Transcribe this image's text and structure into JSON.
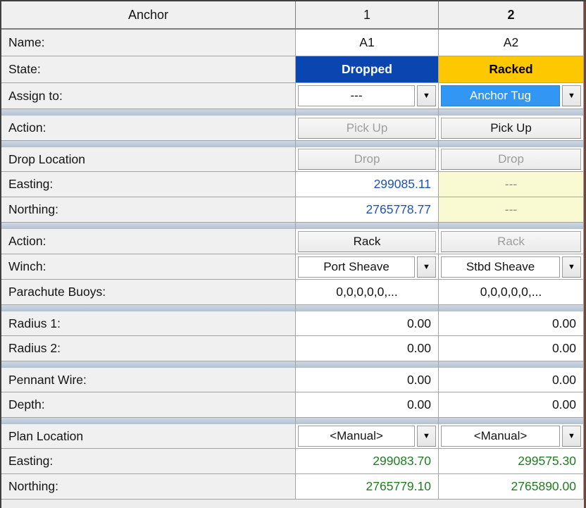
{
  "header": {
    "title": "Anchor",
    "col1": "1",
    "col2": "2"
  },
  "rows": {
    "name": {
      "label": "Name:",
      "a1": "A1",
      "a2": "A2"
    },
    "state": {
      "label": "State:",
      "a1": "Dropped",
      "a2": "Racked"
    },
    "assign": {
      "label": "Assign to:",
      "a1": "---",
      "a2": "Anchor Tug"
    },
    "action_pickup": {
      "label": "Action:",
      "a1": "Pick Up",
      "a2": "Pick Up"
    },
    "drop_location": {
      "label": "Drop Location",
      "a1": "Drop",
      "a2": "Drop"
    },
    "drop_easting": {
      "label": "Easting:",
      "a1": "299085.11",
      "a2": "---"
    },
    "drop_northing": {
      "label": "Northing:",
      "a1": "2765778.77",
      "a2": "---"
    },
    "action_rack": {
      "label": "Action:",
      "a1": "Rack",
      "a2": "Rack"
    },
    "winch": {
      "label": "Winch:",
      "a1": "Port Sheave",
      "a2": "Stbd Sheave"
    },
    "parachute_buoys": {
      "label": "Parachute Buoys:",
      "a1": "0,0,0,0,0,...",
      "a2": "0,0,0,0,0,..."
    },
    "radius1": {
      "label": "Radius 1:",
      "a1": "0.00",
      "a2": "0.00"
    },
    "radius2": {
      "label": "Radius 2:",
      "a1": "0.00",
      "a2": "0.00"
    },
    "pennant_wire": {
      "label": "Pennant Wire:",
      "a1": "0.00",
      "a2": "0.00"
    },
    "depth": {
      "label": "Depth:",
      "a1": "0.00",
      "a2": "0.00"
    },
    "plan_location": {
      "label": "Plan Location",
      "a1": "<Manual>",
      "a2": "<Manual>"
    },
    "plan_easting": {
      "label": "Easting:",
      "a1": "299083.70",
      "a2": "299575.30"
    },
    "plan_northing": {
      "label": "Northing:",
      "a1": "2765779.10",
      "a2": "2765890.00"
    }
  },
  "icons": {
    "dropdown": "▼"
  },
  "colors": {
    "state_dropped": "#0b45af",
    "state_racked": "#fdc800",
    "selection_blue": "#3296f5",
    "dropped_value_text": "#1c53b4",
    "planned_value_text": "#1e7e1e",
    "disabled_field_bg": "#fafad2",
    "section_separator": "#b8c5d4",
    "label_bg": "#f0f0f0"
  }
}
